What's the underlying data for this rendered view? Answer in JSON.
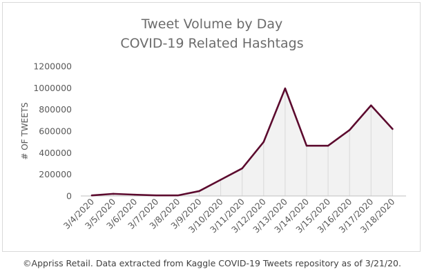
{
  "chart_data": {
    "type": "area",
    "title_lines": [
      "Tweet Volume by Day",
      "COVID-19 Related Hashtags"
    ],
    "xlabel": "",
    "ylabel": "# OF TWEETS",
    "categories": [
      "3/4/2020",
      "3/5/2020",
      "3/6/2020",
      "3/7/2020",
      "3/8/2020",
      "3/9/2020",
      "3/10/2020",
      "3/11/2020",
      "3/12/2020",
      "3/13/2020",
      "3/14/2020",
      "3/15/2020",
      "3/16/2020",
      "3/17/2020",
      "3/18/2020"
    ],
    "series": [
      {
        "values": [
          5000,
          20000,
          12000,
          5000,
          5000,
          45000,
          150000,
          255000,
          500000,
          995000,
          465000,
          465000,
          610000,
          838000,
          620000
        ]
      }
    ],
    "ylim": [
      0,
      1200000
    ],
    "yticks": [
      0,
      200000,
      400000,
      600000,
      800000,
      1000000,
      1200000
    ],
    "ytick_labels": [
      "0",
      "200000",
      "400000",
      "600000",
      "800000",
      "1000000",
      "1200000"
    ],
    "grid": false,
    "legend": "none",
    "colors": {
      "line": "#5c0a2e",
      "area": "#f2f2f2",
      "droplines": "#d9d9d9",
      "axis_text": "#595959"
    }
  },
  "footer": "©Appriss Retail.  Data extracted from Kaggle COVID-19 Tweets repository as of 3/21/20."
}
